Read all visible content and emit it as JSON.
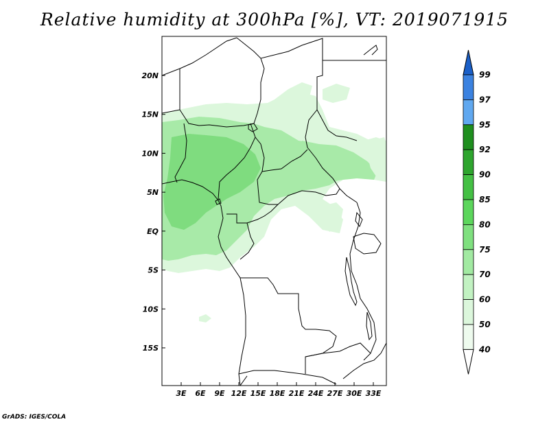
{
  "title": "Relative humidity at 300hPa [%], VT: 2019071915",
  "credit": "GrADS: IGES/COLA",
  "map": {
    "lat_range": [
      -20,
      24
    ],
    "lon_range": [
      0,
      35
    ],
    "lat_ticks": [
      "20N",
      "15N",
      "10N",
      "5N",
      "EQ",
      "5S",
      "10S",
      "15S"
    ],
    "lon_ticks": [
      "3E",
      "6E",
      "9E",
      "12E",
      "15E",
      "18E",
      "21E",
      "24E",
      "27E",
      "30E",
      "33E"
    ],
    "frame_color": "#000000",
    "border_color": "#000000"
  },
  "colorbar": {
    "levels": [
      "99",
      "97",
      "95",
      "92",
      "90",
      "85",
      "80",
      "75",
      "70",
      "60",
      "50",
      "40"
    ],
    "colors": [
      "#1a5fc8",
      "#3b82e0",
      "#60a8f0",
      "#1f8f1f",
      "#2ea52e",
      "#44c044",
      "#5cd65c",
      "#7fe07f",
      "#a2eaa2",
      "#c2f2c2",
      "#dcf7dc",
      "#eefbee"
    ]
  },
  "shading_colors": {
    "light": "#dcf7dc",
    "medium": "#a8eaa8",
    "strong": "#7fdc7f"
  }
}
